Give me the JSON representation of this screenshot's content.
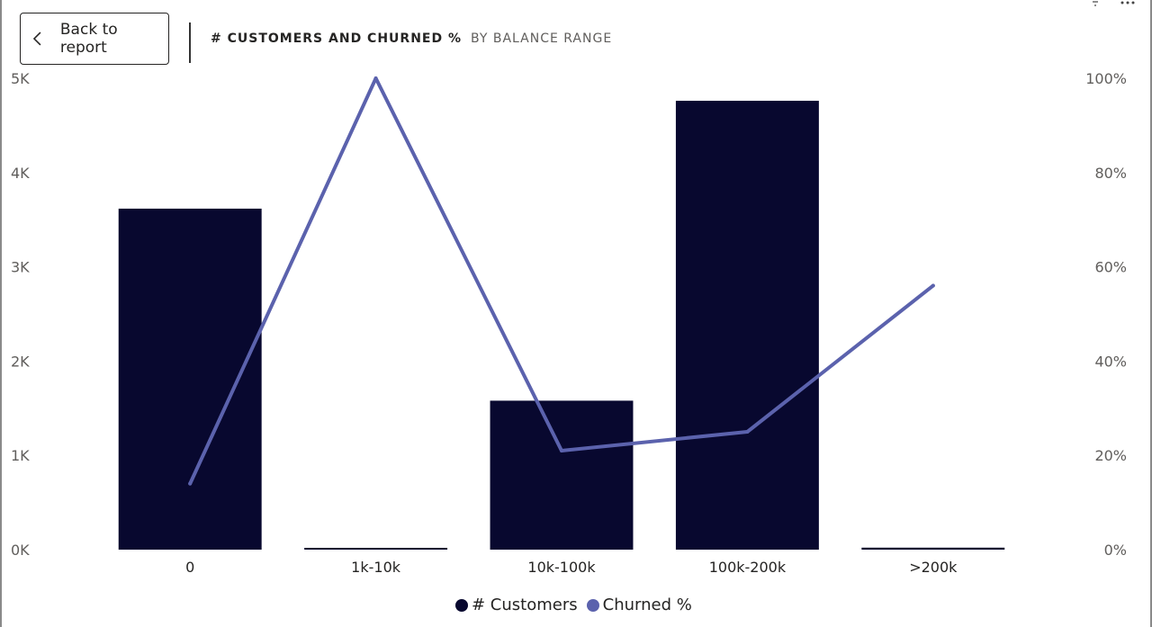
{
  "header": {
    "back_label": "Back to report",
    "title": "# CUSTOMERS AND CHURNED %",
    "subtitle": "BY BALANCE RANGE"
  },
  "icons": {
    "back": "chevron-left-icon",
    "filter": "filter-icon",
    "more": "more-options-icon"
  },
  "colors": {
    "bar": "#08082f",
    "line": "#5b62ad"
  },
  "chart_data": {
    "type": "bar+line",
    "categories": [
      "0",
      "1k-10k",
      "10k-100k",
      "100k-200k",
      ">200k"
    ],
    "series": [
      {
        "name": "# Customers",
        "type": "bar",
        "axis": "left",
        "values": [
          3617,
          12,
          1580,
          4761,
          21
        ]
      },
      {
        "name": "Churned %",
        "type": "line",
        "axis": "right",
        "values": [
          14,
          100,
          21,
          25,
          56
        ]
      }
    ],
    "y_left": {
      "min": 0,
      "max": 5000,
      "ticks": [
        "0K",
        "1K",
        "2K",
        "3K",
        "4K",
        "5K"
      ]
    },
    "y_right": {
      "min": 0,
      "max": 100,
      "ticks": [
        "0%",
        "20%",
        "40%",
        "60%",
        "80%",
        "100%"
      ]
    },
    "grid": false,
    "legend_position": "bottom-center"
  }
}
